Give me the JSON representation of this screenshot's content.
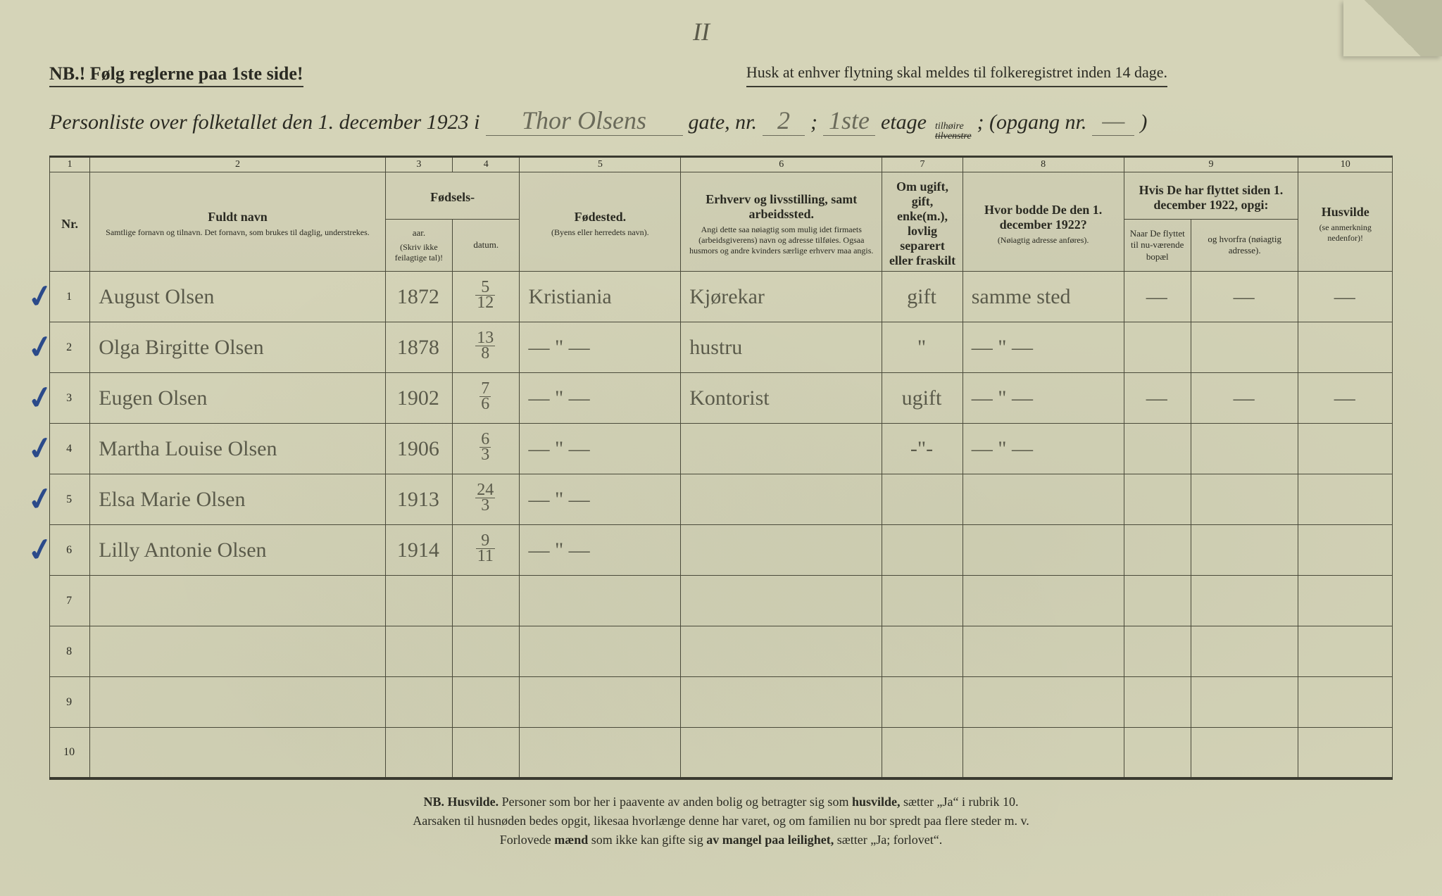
{
  "page_mark": "II",
  "header": {
    "nb": "NB.! Følg reglerne paa 1ste side!",
    "husk": "Husk at enhver flytning skal meldes til folkeregistret inden 14 dage.",
    "subtitle_prefix": "Personliste over folketallet den 1. december 1923 i",
    "street_hand": "Thor Olsens",
    "gate_label": "gate, nr.",
    "gate_nr_hand": "2",
    "semi": ";",
    "floor_hand": "1ste",
    "etage_label": "etage",
    "tilhoire": "tilhøire",
    "tilvenstre": "tilvenstre",
    "opgang": "; (opgang nr.",
    "opgang_val": "—",
    "close": ")"
  },
  "columns": {
    "numbers": [
      "1",
      "2",
      "3",
      "4",
      "5",
      "6",
      "7",
      "8",
      "9",
      "10"
    ],
    "nr": "Nr.",
    "fuldt_navn": "Fuldt navn",
    "fuldt_navn_sub": "Samtlige fornavn og tilnavn. Det fornavn, som brukes til daglig, understrekes.",
    "fodsels": "Fødsels-",
    "aar": "aar.",
    "datum": "datum.",
    "aar_sub": "(Skriv ikke feilagtige tal)!",
    "fodested": "Fødested.",
    "fodested_sub": "(Byens eller herredets navn).",
    "erhverv": "Erhverv og livsstilling, samt arbeidssted.",
    "erhverv_sub": "Angi dette saa nøiagtig som mulig idet firmaets (arbeidsgiverens) navn og adresse tilføies. Ogsaa husmors og andre kvinders særlige erhverv maa angis.",
    "civil": "Om ugift, gift, enke(m.), lovlig separert eller fraskilt",
    "hvor1922": "Hvor bodde De den 1. december 1922?",
    "hvor1922_sub": "(Nøiagtig adresse anføres).",
    "flyttet": "Hvis De har flyttet siden 1. december 1922, opgi:",
    "naar": "Naar De flyttet til nu-værende bopæl",
    "hvorfra": "og hvorfra (nøiagtig adresse).",
    "husvilde": "Husvilde",
    "husvilde_sub": "(se anmerkning nedenfor)!"
  },
  "rows": [
    {
      "nr": "1",
      "tick": true,
      "name": "August Olsen",
      "year": "1872",
      "date_n": "5",
      "date_d": "12",
      "birthplace": "Kristiania",
      "occ": "Kjørekar",
      "civil": "gift",
      "addr1922": "samme sted",
      "naar": "—",
      "hvorfra": "—",
      "husv": "—"
    },
    {
      "nr": "2",
      "tick": true,
      "name": "Olga Birgitte Olsen",
      "year": "1878",
      "date_n": "13",
      "date_d": "8",
      "birthplace": "— \" —",
      "occ": "hustru",
      "civil": "\"",
      "addr1922": "— \" —",
      "naar": "",
      "hvorfra": "",
      "husv": ""
    },
    {
      "nr": "3",
      "tick": true,
      "name": "Eugen Olsen",
      "year": "1902",
      "date_n": "7",
      "date_d": "6",
      "birthplace": "— \" —",
      "occ": "Kontorist",
      "civil": "ugift",
      "addr1922": "— \" —",
      "naar": "—",
      "hvorfra": "—",
      "husv": "—"
    },
    {
      "nr": "4",
      "tick": true,
      "name": "Martha Louise Olsen",
      "year": "1906",
      "date_n": "6",
      "date_d": "3",
      "birthplace": "— \" —",
      "occ": "",
      "civil": "-\"-",
      "addr1922": "— \" —",
      "naar": "",
      "hvorfra": "",
      "husv": ""
    },
    {
      "nr": "5",
      "tick": true,
      "name": "Elsa Marie Olsen",
      "year": "1913",
      "date_n": "24",
      "date_d": "3",
      "birthplace": "— \" —",
      "occ": "",
      "civil": "",
      "addr1922": "",
      "naar": "",
      "hvorfra": "",
      "husv": ""
    },
    {
      "nr": "6",
      "tick": true,
      "name": "Lilly Antonie Olsen",
      "year": "1914",
      "date_n": "9",
      "date_d": "11",
      "birthplace": "— \" —",
      "occ": "",
      "civil": "",
      "addr1922": "",
      "naar": "",
      "hvorfra": "",
      "husv": ""
    },
    {
      "nr": "7",
      "tick": false,
      "name": "",
      "year": "",
      "date_n": "",
      "date_d": "",
      "birthplace": "",
      "occ": "",
      "civil": "",
      "addr1922": "",
      "naar": "",
      "hvorfra": "",
      "husv": ""
    },
    {
      "nr": "8",
      "tick": false,
      "name": "",
      "year": "",
      "date_n": "",
      "date_d": "",
      "birthplace": "",
      "occ": "",
      "civil": "",
      "addr1922": "",
      "naar": "",
      "hvorfra": "",
      "husv": ""
    },
    {
      "nr": "9",
      "tick": false,
      "name": "",
      "year": "",
      "date_n": "",
      "date_d": "",
      "birthplace": "",
      "occ": "",
      "civil": "",
      "addr1922": "",
      "naar": "",
      "hvorfra": "",
      "husv": ""
    },
    {
      "nr": "10",
      "tick": false,
      "name": "",
      "year": "",
      "date_n": "",
      "date_d": "",
      "birthplace": "",
      "occ": "",
      "civil": "",
      "addr1922": "",
      "naar": "",
      "hvorfra": "",
      "husv": ""
    }
  ],
  "footnote": {
    "l1a": "NB.  Husvilde.",
    "l1b": "  Personer som bor her i paavente av anden bolig og betragter sig som ",
    "l1c": "husvilde,",
    "l1d": " sætter „Ja“ i rubrik 10.",
    "l2": "Aarsaken til husnøden bedes opgit, likesaa hvorlænge denne har varet, og om familien nu bor spredt paa flere steder m. v.",
    "l3a": "Forlovede ",
    "l3b": "mænd",
    "l3c": " som ikke kan gifte sig ",
    "l3d": "av mangel paa leilighet,",
    "l3e": " sætter „Ja; forlovet“."
  },
  "colors": {
    "paper": "#d5d4b8",
    "ink": "#2a2a22",
    "rule": "#4a4a3a",
    "pencil": "#5a5a4a",
    "blue": "#2b4a8a"
  }
}
